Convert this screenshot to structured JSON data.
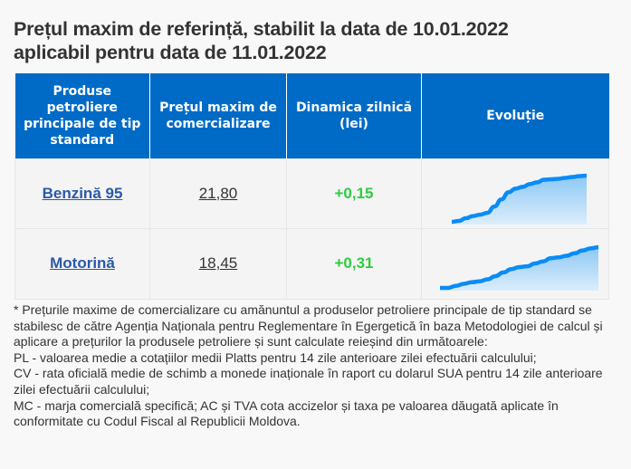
{
  "title": {
    "line1": "Prețul maxim de referință, stabilit la data de 10.01.2022",
    "line2": "aplicabil pentru data de 11.01.2022"
  },
  "table": {
    "headers": [
      "Produse petroliere principale de tip standard",
      "Prețul maxim de comercializare",
      "Dinamica zilnică (lei)",
      "Evoluție"
    ],
    "rows": [
      {
        "product": "Benzină 95",
        "price": "21,80",
        "delta": "+0,15"
      },
      {
        "product": "Motorină",
        "price": "18,45",
        "delta": "+0,31"
      }
    ]
  },
  "colors": {
    "header_bg": "#006bc7",
    "positive": "#2ecc40",
    "sparkline": "#0a8cf5",
    "link": "#2a5aa8"
  },
  "sparklines": [
    {
      "name": "benzina-95-trend",
      "values": [
        0,
        0.2,
        0.8,
        1.3,
        1.6,
        2.0,
        3.4,
        5.0,
        6.6,
        7.4,
        7.8,
        8.4,
        8.8,
        9.4,
        9.5,
        9.6,
        9.8,
        10.0,
        10.2,
        10.3
      ]
    },
    {
      "name": "motorina-trend",
      "values": [
        0,
        0,
        0.5,
        1.0,
        1.4,
        1.6,
        2.1,
        2.9,
        3.8,
        4.6,
        5.1,
        5.3,
        6.0,
        6.5,
        7.3,
        7.5,
        7.9,
        8.5,
        9.2,
        9.7,
        10.0
      ]
    }
  ],
  "note": {
    "lines": [
      "* Prețurile maxime de comercializare cu amănuntul a produselor petroliere principale de tip standard se stabilesc de către Agenția Naționala pentru Reglementare în Egergetică în baza Metodologiei de calcul și aplicare a prețurilor la produsele petroliere și sunt calculate reieșind din următoarele:",
      "PL - valoarea medie a cotațiilor medii Platts pentru 14 zile anterioare zilei efectuării calculului;",
      "CV - rata oficială medie de schimb a monede inaționale în raport cu dolarul SUA pentru 14 zile anterioare zilei efectuării calculului;",
      "MC - marja comercială specifică; AC și TVA cota accizelor și taxa pe valoarea dăugată aplicate în conformitate cu Codul Fiscal al Republicii Moldova."
    ]
  }
}
